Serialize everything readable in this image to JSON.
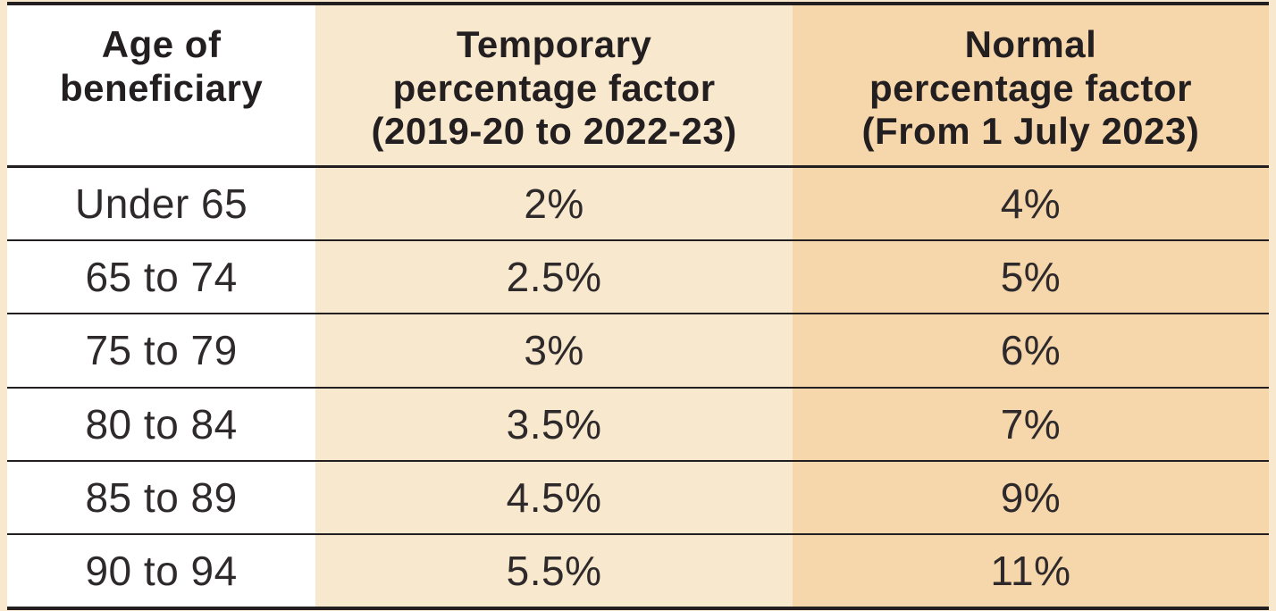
{
  "table": {
    "columns": [
      {
        "label": "Age of\nbeneficiary"
      },
      {
        "label": "Temporary\npercentage factor\n(2019-20 to 2022-23)"
      },
      {
        "label": "Normal\npercentage factor\n(From 1 July 2023)"
      }
    ],
    "rows": [
      {
        "age": "Under 65",
        "temporary": "2%",
        "normal": "4%"
      },
      {
        "age": "65 to 74",
        "temporary": "2.5%",
        "normal": "5%"
      },
      {
        "age": "75 to 79",
        "temporary": "3%",
        "normal": "6%"
      },
      {
        "age": "80 to 84",
        "temporary": "3.5%",
        "normal": "7%"
      },
      {
        "age": "85 to 89",
        "temporary": "4.5%",
        "normal": "9%"
      },
      {
        "age": "90 to 94",
        "temporary": "5.5%",
        "normal": "11%"
      }
    ],
    "colors": {
      "age_column_bg": "#ffffff",
      "temporary_column_bg": "#f8e8cd",
      "normal_column_bg": "#f6d6ab",
      "border": "#231f20",
      "header_text": "#231f20",
      "body_text": "#2e2a2b",
      "page_background": "#f8e8cd"
    }
  }
}
